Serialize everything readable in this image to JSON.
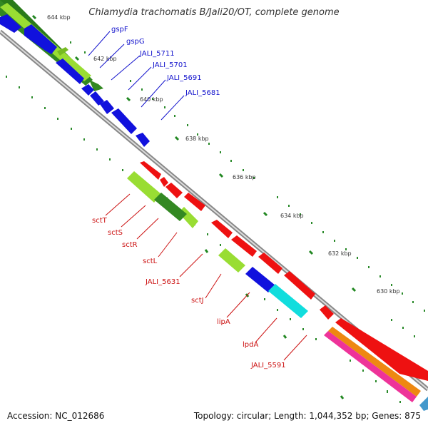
{
  "title": "Chlamydia trachomatis B/Jali20/OT, complete genome",
  "footer": {
    "accession": "Accession: NC_012686",
    "summary": "Topology: circular; Length: 1,044,352 bp; Genes: 875"
  },
  "ruler": [
    "644 kbp",
    "642 kbp",
    "640 kbp",
    "638 kbp",
    "636 kbp",
    "634 kbp",
    "632 kbp",
    "630 kbp"
  ],
  "colors": {
    "red": "#ee1111",
    "blue": "#1111dd",
    "dark_green": "#338822",
    "light_green": "#99dd33",
    "cyan": "#11dddd",
    "orange": "#ee8811",
    "magenta": "#ee3399",
    "backbone": "#888888",
    "label_blue": "#1111cc",
    "label_red": "#cc1111"
  },
  "gene_labels_top": [
    {
      "text": "gspF"
    },
    {
      "text": "gspG"
    },
    {
      "text": "JALI_5711"
    },
    {
      "text": "JALI_5701"
    },
    {
      "text": "JALI_5691"
    },
    {
      "text": "JALI_5681"
    }
  ],
  "gene_labels_bottom": [
    {
      "text": "sctT"
    },
    {
      "text": "sctS"
    },
    {
      "text": "sctR"
    },
    {
      "text": "sctL"
    },
    {
      "text": "JALI_5631"
    },
    {
      "text": "sctJ"
    },
    {
      "text": "lipA"
    },
    {
      "text": "lpdA"
    },
    {
      "text": "JALI_5591"
    }
  ]
}
